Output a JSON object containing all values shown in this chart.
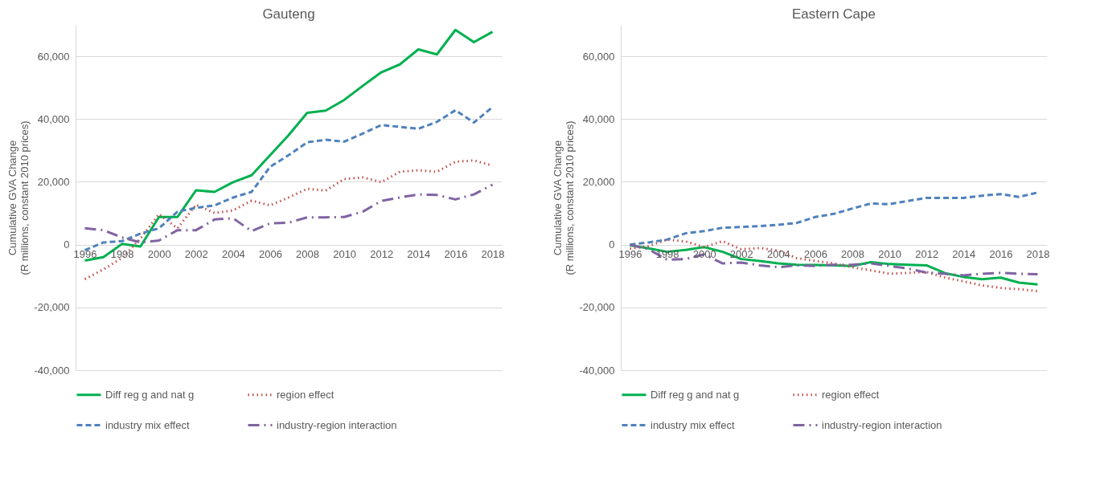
{
  "chart_data": [
    {
      "type": "line",
      "title": "Gauteng",
      "ylabel": "Cumulative GVA Change\n(R millions, constant 2010 prices)",
      "categories": [
        "1996",
        null,
        "1998",
        null,
        "2000",
        null,
        "2002",
        null,
        "2004",
        null,
        "2006",
        null,
        "2008",
        null,
        "2010",
        null,
        "2012",
        null,
        "2014",
        null,
        "2016",
        null,
        "2018"
      ],
      "series": [
        {
          "name": "Diff reg g and nat g",
          "color": "#00b050",
          "line_style": "solid",
          "values": [
            -5100,
            -4000,
            200,
            -600,
            8800,
            8800,
            17300,
            16800,
            19900,
            22100,
            28500,
            34900,
            42000,
            42700,
            46100,
            50600,
            54900,
            57400,
            62200,
            60600,
            68400,
            64500,
            67800
          ]
        },
        {
          "name": "region effect",
          "color": "#c0504d",
          "line_style": "dotted",
          "values": [
            -11000,
            -7900,
            -4300,
            1900,
            9700,
            5200,
            12700,
            10100,
            10900,
            14000,
            12500,
            15000,
            17800,
            17200,
            20900,
            21400,
            19900,
            23200,
            23700,
            23200,
            26400,
            26800,
            25200
          ]
        },
        {
          "name": "industry mix effect",
          "color": "#4f81bd",
          "line_style": "dashed",
          "values": [
            -1800,
            700,
            1100,
            3500,
            5200,
            10500,
            11700,
            12500,
            15000,
            16800,
            24800,
            28500,
            32600,
            33400,
            32800,
            35400,
            38100,
            37500,
            36900,
            39100,
            42800,
            38900,
            43800
          ]
        },
        {
          "name": "industry-region interaction",
          "color": "#8064a2",
          "line_style": "dashdot",
          "values": [
            5200,
            4600,
            2300,
            700,
            1300,
            4600,
            4600,
            8000,
            8400,
            4300,
            6800,
            7000,
            8700,
            8700,
            8800,
            10500,
            13900,
            15000,
            16000,
            15800,
            14400,
            16000,
            19100
          ]
        }
      ],
      "ylim": [
        -40000,
        70000
      ],
      "yticks": [
        {
          "value": -40000,
          "label": "-40,000"
        },
        {
          "value": -20000,
          "label": "-20,000"
        },
        0,
        {
          "value": 20000,
          "label": "20,000"
        },
        {
          "value": 40000,
          "label": "40,000"
        },
        {
          "value": 60000,
          "label": "60,000"
        }
      ],
      "grid": "y",
      "legend": "bottom"
    },
    {
      "type": "line",
      "title": "Eastern Cape",
      "ylabel": "Cumulative GVA Change\n(R millions, constant 2010 prices)",
      "categories": [
        "1996",
        null,
        "1998",
        null,
        "2000",
        null,
        "2002",
        null,
        "2004",
        null,
        "2006",
        null,
        "2008",
        null,
        "2010",
        null,
        "2012",
        null,
        "2014",
        null,
        "2016",
        null,
        "2018"
      ],
      "series": [
        {
          "name": "Diff reg g and nat g",
          "color": "#00b050",
          "line_style": "solid",
          "values": [
            -200,
            -1200,
            -2300,
            -1700,
            -800,
            -2300,
            -4600,
            -5200,
            -6000,
            -6400,
            -6500,
            -6600,
            -6800,
            -5600,
            -6200,
            -6400,
            -6600,
            -9100,
            -10300,
            -11000,
            -10500,
            -12100,
            -12700
          ]
        },
        {
          "name": "region effect",
          "color": "#c0504d",
          "line_style": "dotted",
          "values": [
            -1300,
            -500,
            1600,
            1000,
            -800,
            1100,
            -1500,
            -1100,
            -1900,
            -4300,
            -5200,
            -6000,
            -7200,
            -8200,
            -9300,
            -9000,
            -8700,
            -10500,
            -11700,
            -13000,
            -13800,
            -14200,
            -14800
          ]
        },
        {
          "name": "industry mix effect",
          "color": "#4f81bd",
          "line_style": "dashed",
          "values": [
            0,
            700,
            1600,
            3600,
            4300,
            5400,
            5600,
            5900,
            6300,
            6900,
            8800,
            9800,
            11500,
            13100,
            12900,
            13900,
            14900,
            14900,
            14900,
            15600,
            16100,
            15200,
            16600
          ]
        },
        {
          "name": "industry-region interaction",
          "color": "#8064a2",
          "line_style": "dashdot",
          "values": [
            0,
            -1500,
            -4800,
            -4600,
            -3100,
            -6000,
            -5700,
            -6600,
            -7200,
            -6600,
            -6800,
            -6400,
            -6400,
            -6000,
            -6800,
            -7600,
            -8900,
            -9300,
            -9800,
            -9300,
            -9000,
            -9300,
            -9400
          ]
        }
      ],
      "ylim": [
        -40000,
        70000
      ],
      "yticks": [
        {
          "value": -40000,
          "label": "-40,000"
        },
        {
          "value": -20000,
          "label": "-20,000"
        },
        0,
        {
          "value": 20000,
          "label": "20,000"
        },
        {
          "value": 40000,
          "label": "40,000"
        },
        {
          "value": 60000,
          "label": "60,000"
        }
      ],
      "grid": "y",
      "legend": "bottom"
    }
  ]
}
